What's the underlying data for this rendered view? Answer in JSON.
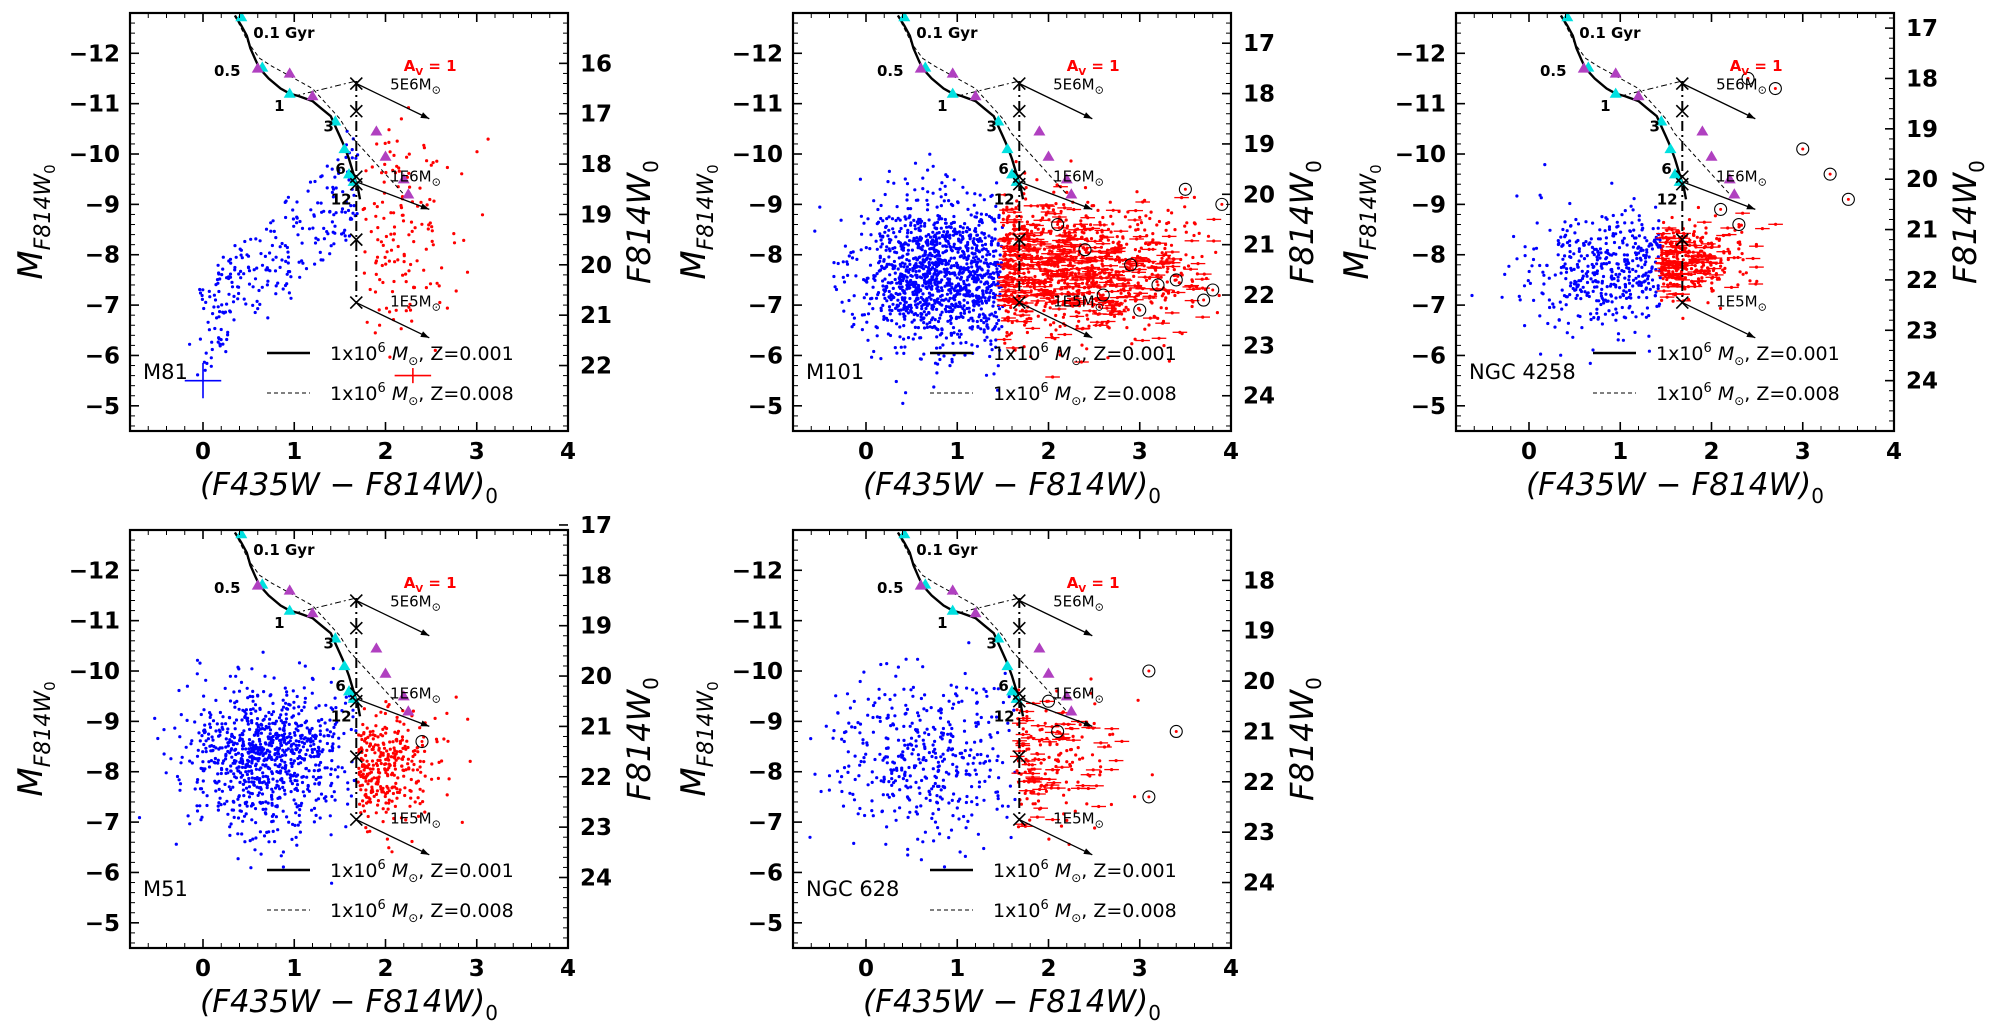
{
  "figure": {
    "description": "Five color-magnitude diagram panels with cluster evolutionary tracks",
    "left_axis_symbol": "M",
    "left_axis_subscript": "F814W",
    "left_axis_sub2": "0",
    "right_axis_label": "F814W",
    "right_axis_sub": "0",
    "x_axis_label": "(F435W − F814W)",
    "x_axis_sub": "0",
    "av_label": "A",
    "av_sub": "V",
    "av_value": "= 1",
    "age_labels": [
      "0.1 Gyr",
      "0.5",
      "1",
      "3",
      "6",
      "12"
    ],
    "mass_labels": [
      "5E6M",
      "1E6M",
      "1E5M"
    ],
    "legend": [
      {
        "text": "1x10",
        "sup": "6",
        "unit": " M",
        "sub": "⊙",
        "tail": ", Z=0.001",
        "style": "solid"
      },
      {
        "text": "1x10",
        "sup": "6",
        "unit": " M",
        "sub": "⊙",
        "tail": ", Z=0.008",
        "style": "dashed"
      }
    ],
    "colors": {
      "blue": "#0000ff",
      "red": "#ff0000",
      "cyan": "#00e0e0",
      "magenta": "#b040c0",
      "black": "#000000"
    }
  },
  "chart_data": [
    {
      "type": "scatter",
      "galaxy": "M81",
      "xlim": [
        -0.8,
        4.0
      ],
      "ylim": [
        -4.5,
        -12.8
      ],
      "x_ticks": [
        0,
        1,
        2,
        3,
        4
      ],
      "y_ticks": [
        -12,
        -11,
        -10,
        -9,
        -8,
        -7,
        -6,
        -5
      ],
      "right_ticks": [
        "16",
        "17",
        "18",
        "19",
        "20",
        "21",
        "22"
      ],
      "right_tick_values": [
        -11.8,
        -10.8,
        -9.8,
        -8.8,
        -7.8,
        -6.8,
        -5.8
      ],
      "color_cut": 1.7,
      "blue_points": 260,
      "red_points": 150,
      "error_bars": [
        {
          "x": 0.0,
          "y": -5.5,
          "color": "blue",
          "xerr": 0.2,
          "yerr": 0.35
        },
        {
          "x": 2.3,
          "y": -5.6,
          "color": "red",
          "xerr": 0.2,
          "yerr": 0.15
        }
      ],
      "circled": []
    },
    {
      "type": "scatter",
      "galaxy": "M101",
      "xlim": [
        -0.8,
        4.0
      ],
      "ylim": [
        -4.5,
        -12.8
      ],
      "x_ticks": [
        0,
        1,
        2,
        3,
        4
      ],
      "y_ticks": [
        -12,
        -11,
        -10,
        -9,
        -8,
        -7,
        -6,
        -5
      ],
      "right_ticks": [
        "17",
        "18",
        "19",
        "20",
        "21",
        "22",
        "23",
        "24"
      ],
      "right_tick_values": [
        -12.2,
        -11.2,
        -10.2,
        -9.2,
        -8.2,
        -7.2,
        -6.2,
        -5.2
      ],
      "color_cut": 1.5,
      "blue_points": 1300,
      "red_points": 1100,
      "error_bars": [],
      "circled": [
        [
          2.1,
          -8.6
        ],
        [
          2.4,
          -8.1
        ],
        [
          2.9,
          -7.8
        ],
        [
          3.2,
          -7.4
        ],
        [
          3.5,
          -9.3
        ],
        [
          3.7,
          -7.1
        ],
        [
          3.9,
          -9.0
        ],
        [
          2.6,
          -7.2
        ],
        [
          3.0,
          -6.9
        ],
        [
          3.4,
          -7.5
        ],
        [
          3.8,
          -7.3
        ]
      ]
    },
    {
      "type": "scatter",
      "galaxy": "NGC 4258",
      "xlim": [
        -0.8,
        4.0
      ],
      "ylim": [
        -4.5,
        -12.8
      ],
      "x_ticks": [
        0,
        1,
        2,
        3,
        4
      ],
      "y_ticks": [
        -12,
        -11,
        -10,
        -9,
        -8,
        -7,
        -6,
        -5
      ],
      "right_ticks": [
        "17",
        "18",
        "19",
        "20",
        "21",
        "22",
        "23",
        "24"
      ],
      "right_tick_values": [
        -12.5,
        -11.5,
        -10.5,
        -9.5,
        -8.5,
        -7.5,
        -6.5,
        -5.5
      ],
      "color_cut": 1.45,
      "blue_points": 450,
      "red_points": 330,
      "error_bars": [],
      "circled": [
        [
          2.4,
          -11.5
        ],
        [
          2.7,
          -11.3
        ],
        [
          3.0,
          -10.1
        ],
        [
          3.3,
          -9.6
        ],
        [
          3.5,
          -9.1
        ],
        [
          2.1,
          -8.9
        ],
        [
          2.3,
          -8.6
        ]
      ]
    },
    {
      "type": "scatter",
      "galaxy": "M51",
      "xlim": [
        -0.8,
        4.0
      ],
      "ylim": [
        -4.5,
        -12.8
      ],
      "x_ticks": [
        0,
        1,
        2,
        3,
        4
      ],
      "y_ticks": [
        -12,
        -11,
        -10,
        -9,
        -8,
        -7,
        -6,
        -5
      ],
      "right_ticks": [
        "17",
        "18",
        "19",
        "20",
        "21",
        "22",
        "23",
        "24"
      ],
      "right_tick_values": [
        -12.9,
        -11.9,
        -10.9,
        -9.9,
        -8.9,
        -7.9,
        -6.9,
        -5.9
      ],
      "color_cut": 1.7,
      "blue_points": 900,
      "red_points": 320,
      "error_bars": [],
      "circled": [
        [
          2.4,
          -8.6
        ]
      ]
    },
    {
      "type": "scatter",
      "galaxy": "NGC 628",
      "xlim": [
        -0.8,
        4.0
      ],
      "ylim": [
        -4.5,
        -12.8
      ],
      "x_ticks": [
        0,
        1,
        2,
        3,
        4
      ],
      "y_ticks": [
        -12,
        -11,
        -10,
        -9,
        -8,
        -7,
        -6,
        -5
      ],
      "right_ticks": [
        "18",
        "19",
        "20",
        "21",
        "22",
        "23",
        "24"
      ],
      "right_tick_values": [
        -11.8,
        -10.8,
        -9.8,
        -8.8,
        -7.8,
        -6.8,
        -5.8
      ],
      "color_cut": 1.65,
      "blue_points": 430,
      "red_points": 200,
      "error_bars": [],
      "circled": [
        [
          2.1,
          -8.8
        ],
        [
          3.1,
          -10.0
        ],
        [
          3.4,
          -8.8
        ],
        [
          3.1,
          -7.5
        ],
        [
          2.0,
          -9.4
        ]
      ]
    }
  ]
}
